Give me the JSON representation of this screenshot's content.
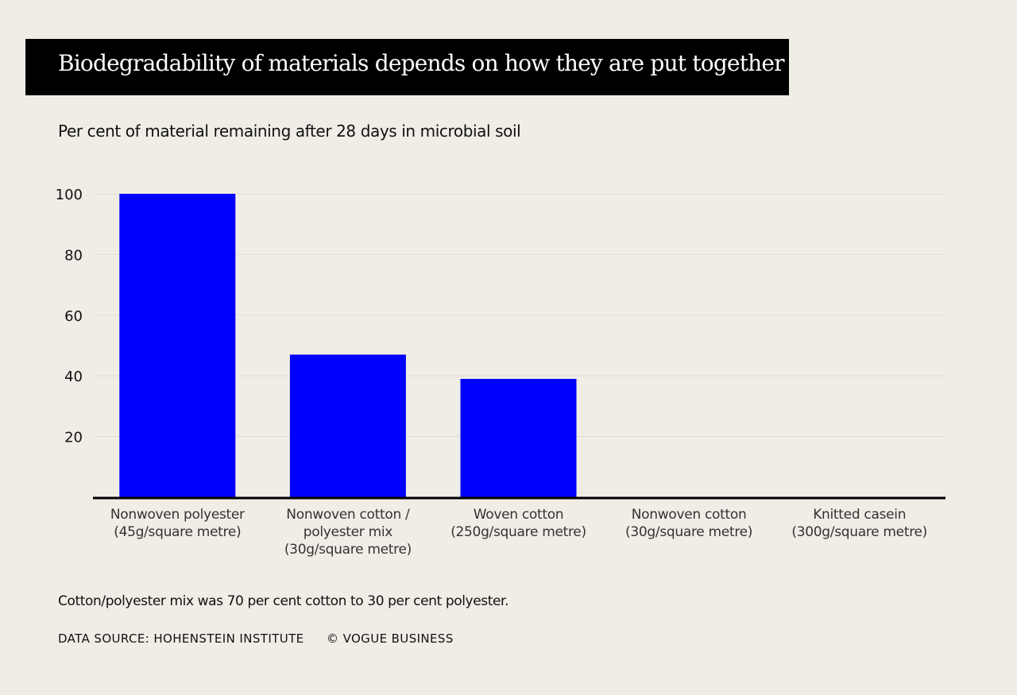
{
  "chart_data": {
    "type": "bar",
    "title": "Biodegradability of materials depends on how they are put together",
    "subtitle": "Per cent of material remaining after 28 days in microbial soil",
    "categories": [
      [
        "Nonwoven polyester",
        "(45g/square metre)"
      ],
      [
        "Nonwoven cotton /",
        "polyester mix",
        "(30g/square metre)"
      ],
      [
        "Woven cotton",
        "(250g/square metre)"
      ],
      [
        "Nonwoven cotton",
        "(30g/square metre)"
      ],
      [
        "Knitted casein",
        "(300g/square metre)"
      ]
    ],
    "values": [
      100,
      47,
      39,
      0,
      0
    ],
    "yticks": [
      20,
      40,
      60,
      80,
      100
    ],
    "ylim": [
      0,
      100
    ],
    "grid": true,
    "bar_color": "#0000ff"
  },
  "note": "Cotton/polyester mix was 70 per cent cotton to 30 per cent polyester.",
  "source": "DATA SOURCE: HOHENSTEIN INSTITUTE",
  "copyright": "© VOGUE BUSINESS"
}
